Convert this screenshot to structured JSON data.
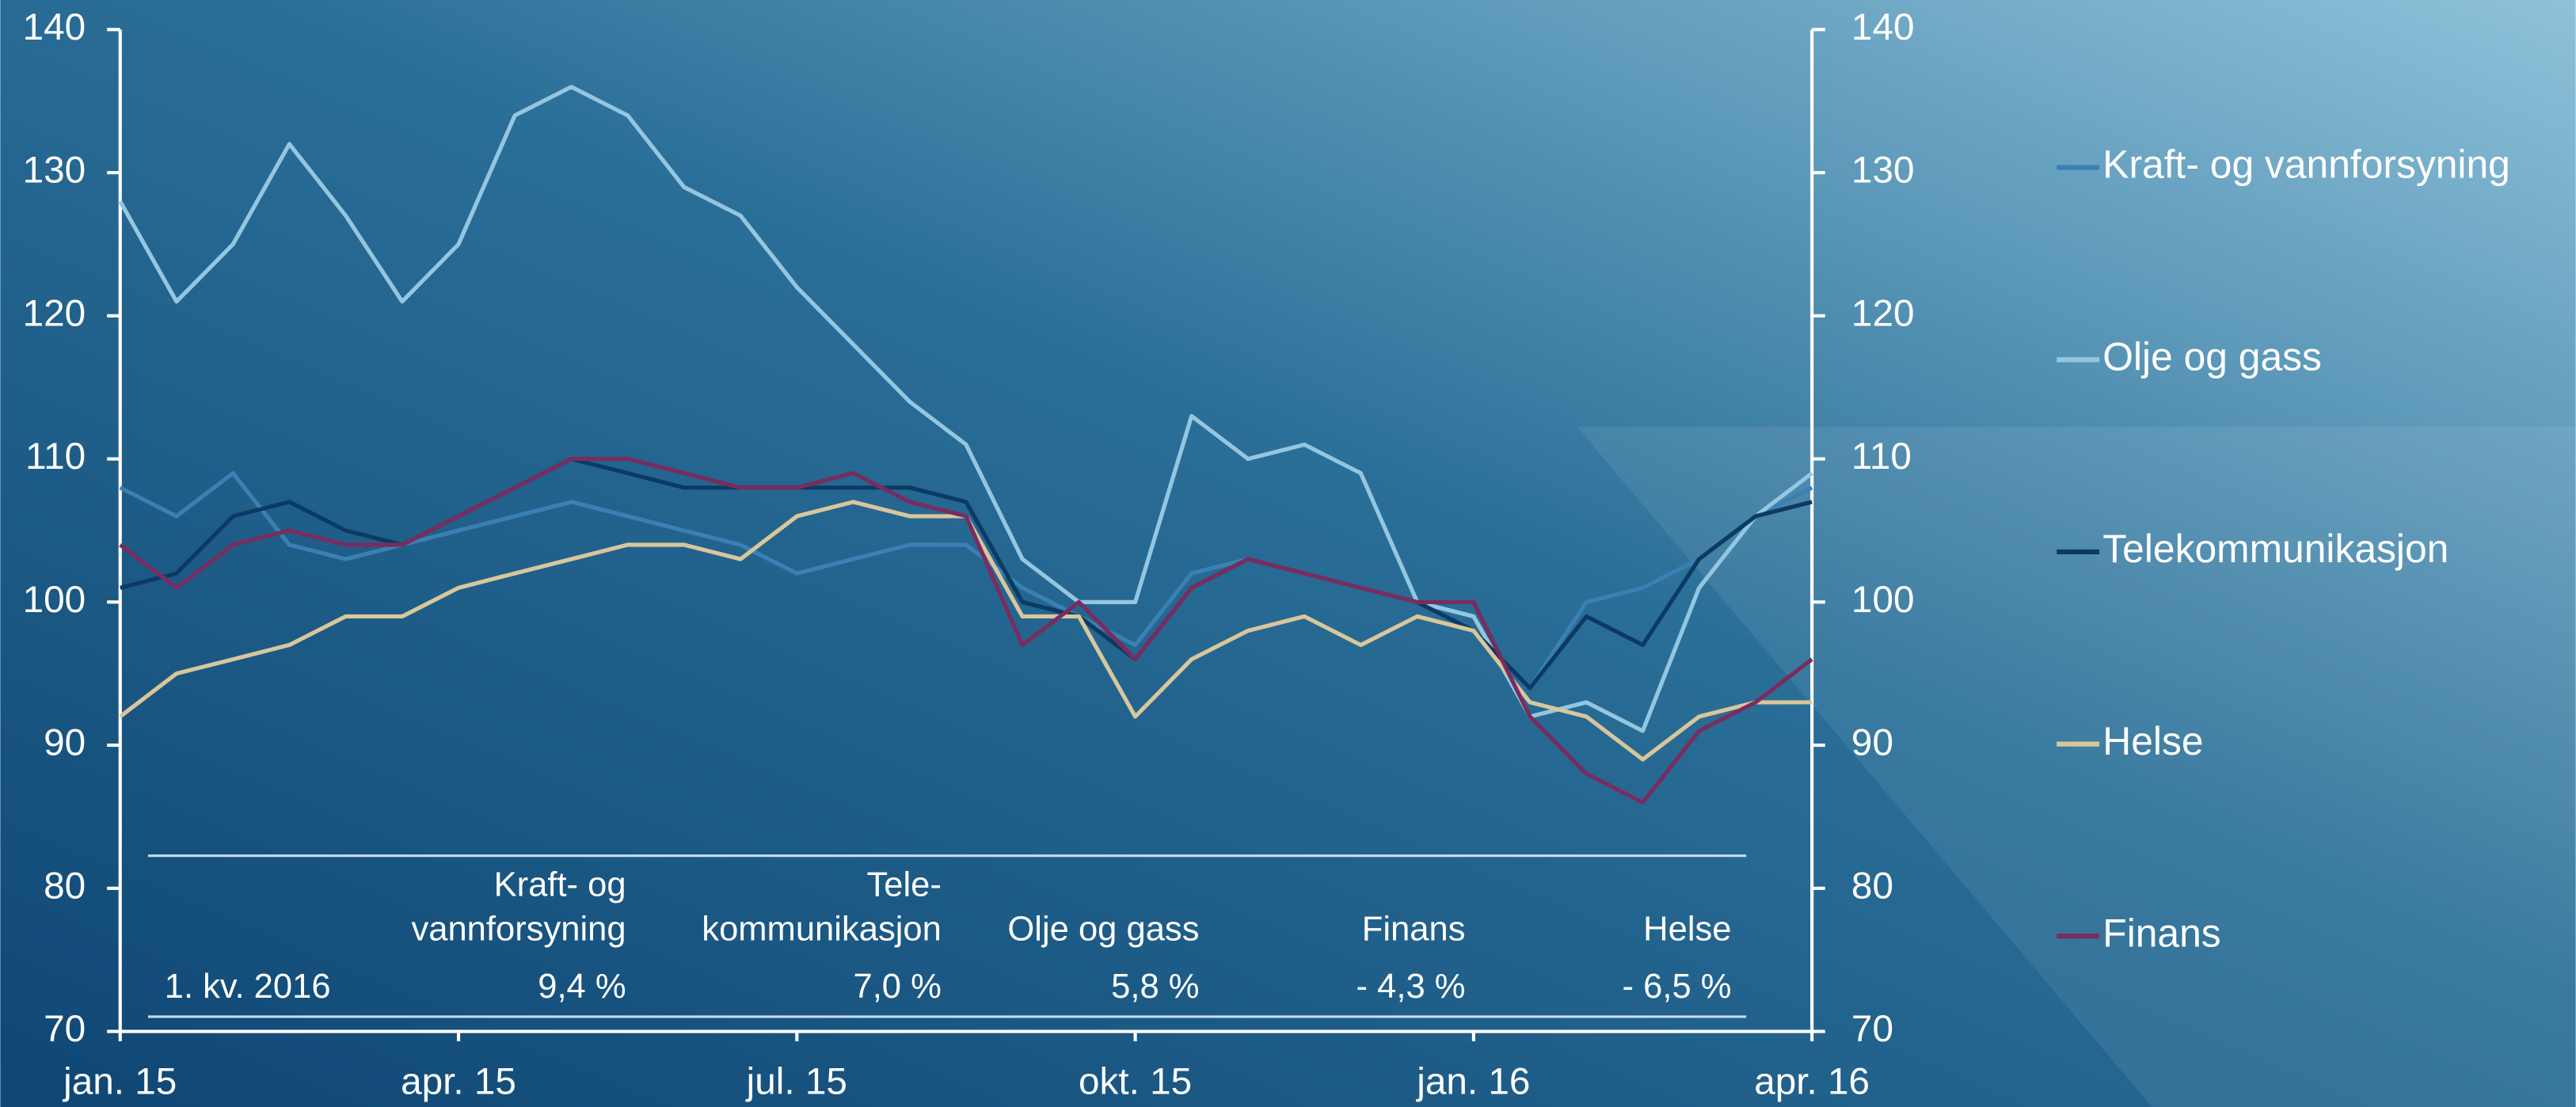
{
  "chart_data": {
    "type": "line",
    "x": [
      0,
      0.5,
      1,
      1.5,
      2,
      2.5,
      3,
      3.5,
      4,
      4.5,
      5,
      5.5,
      6,
      6.5,
      7,
      7.5,
      8,
      8.5,
      9,
      9.5,
      10,
      10.5,
      11,
      11.5,
      12,
      12.5,
      13,
      13.5,
      14,
      14.5,
      15
    ],
    "xlim": [
      0,
      15
    ],
    "xticks": [
      {
        "value": 0,
        "label": "jan. 15"
      },
      {
        "value": 3,
        "label": "apr. 15"
      },
      {
        "value": 6,
        "label": "jul. 15"
      },
      {
        "value": 9,
        "label": "okt. 15"
      },
      {
        "value": 12,
        "label": "jan. 16"
      },
      {
        "value": 15,
        "label": "apr. 16"
      }
    ],
    "ylim": [
      70,
      140
    ],
    "yticks": [
      70,
      80,
      90,
      100,
      110,
      120,
      130,
      140
    ],
    "y2lim": [
      70,
      140
    ],
    "y2ticks": [
      70,
      80,
      90,
      100,
      110,
      120,
      130,
      140
    ],
    "legend": "right",
    "series": [
      {
        "name": "Kraft- og vannforsyning",
        "color": "#3b80b3",
        "values": [
          108,
          106,
          109,
          104,
          103,
          104,
          105,
          106,
          107,
          106,
          105,
          104,
          102,
          103,
          104,
          104,
          101,
          99,
          97,
          102,
          103,
          102,
          101,
          100,
          98,
          94,
          100,
          101,
          103,
          106,
          108
        ]
      },
      {
        "name": "Olje og gass",
        "color": "#94c6e0",
        "values": [
          128,
          121,
          125,
          132,
          127,
          121,
          125,
          134,
          136,
          134,
          129,
          127,
          122,
          118,
          114,
          111,
          103,
          100,
          100,
          113,
          110,
          111,
          109,
          100,
          99,
          92,
          93,
          91,
          101,
          106,
          109
        ]
      },
      {
        "name": "Telekommunikasjon",
        "color": "#0b3a63",
        "values": [
          101,
          102,
          106,
          107,
          105,
          104,
          106,
          108,
          110,
          109,
          108,
          108,
          108,
          108,
          108,
          107,
          100,
          99,
          96,
          101,
          103,
          102,
          101,
          100,
          98,
          94,
          99,
          97,
          103,
          106,
          107
        ]
      },
      {
        "name": "Helse",
        "color": "#d9c69b",
        "values": [
          92,
          95,
          96,
          97,
          99,
          99,
          101,
          102,
          103,
          104,
          104,
          103,
          106,
          107,
          106,
          106,
          99,
          99,
          92,
          96,
          98,
          99,
          97,
          99,
          98,
          93,
          92,
          89,
          92,
          93,
          93
        ]
      },
      {
        "name": "Finans",
        "color": "#7a2c5f",
        "values": [
          104,
          101,
          104,
          105,
          104,
          104,
          106,
          108,
          110,
          110,
          109,
          108,
          108,
          109,
          107,
          106,
          97,
          100,
          96,
          101,
          103,
          102,
          101,
          100,
          100,
          92,
          88,
          86,
          91,
          93,
          96
        ]
      }
    ],
    "table": {
      "header": [
        [
          "Kraft- og",
          "vannforsyning"
        ],
        [
          "Tele-",
          "kommunikasjon"
        ],
        [
          "Olje og gass"
        ],
        [
          "Finans"
        ],
        [
          "Helse"
        ]
      ],
      "row_label": "1. kv. 2016",
      "row": [
        "9,4 %",
        "7,0 %",
        "5,8 %",
        "- 4,3 %",
        "- 6,5 %"
      ]
    }
  }
}
